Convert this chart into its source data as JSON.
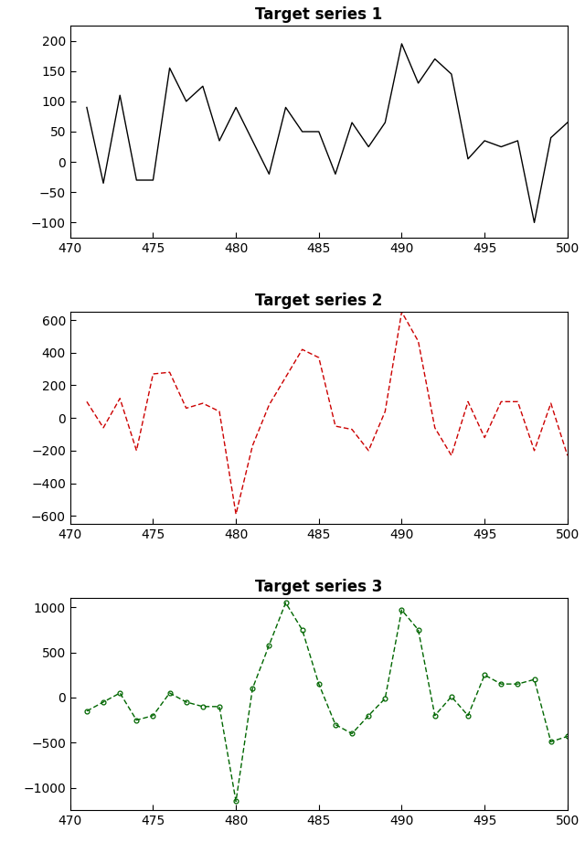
{
  "x": [
    471,
    472,
    473,
    474,
    475,
    476,
    477,
    478,
    479,
    480,
    481,
    482,
    483,
    484,
    485,
    486,
    487,
    488,
    489,
    490,
    491,
    492,
    493,
    494,
    495,
    496,
    497,
    498,
    499,
    500
  ],
  "series1": [
    90,
    -35,
    110,
    -30,
    -30,
    155,
    100,
    125,
    35,
    90,
    35,
    -20,
    90,
    50,
    50,
    -20,
    65,
    25,
    65,
    195,
    130,
    170,
    145,
    5,
    35,
    25,
    35,
    -100,
    40,
    65
  ],
  "series2": [
    100,
    -60,
    120,
    -200,
    270,
    280,
    60,
    90,
    40,
    -590,
    -170,
    80,
    250,
    420,
    370,
    -50,
    -70,
    -200,
    40,
    650,
    470,
    -60,
    -230,
    100,
    -120,
    100,
    100,
    -200,
    90,
    -230
  ],
  "series3": [
    -150,
    -50,
    50,
    -250,
    -200,
    50,
    -50,
    -100,
    -100,
    -1150,
    100,
    580,
    1050,
    750,
    150,
    -300,
    -400,
    -200,
    -10,
    970,
    750,
    -200,
    10,
    -200,
    250,
    150,
    150,
    200,
    -490,
    -430
  ],
  "title1": "Target series 1",
  "title2": "Target series 2",
  "title3": "Target series 3",
  "color1": "#000000",
  "color2": "#cc0000",
  "color3": "#006600",
  "xlim": [
    470,
    500
  ],
  "ylim1": [
    -125,
    225
  ],
  "ylim2": [
    -650,
    650
  ],
  "ylim3": [
    -1250,
    1100
  ],
  "yticks1": [
    -100,
    -50,
    0,
    50,
    100,
    150,
    200
  ],
  "yticks2": [
    -600,
    -400,
    -200,
    0,
    200,
    400,
    600
  ],
  "yticks3": [
    -1000,
    -500,
    0,
    500,
    1000
  ],
  "xticks": [
    470,
    475,
    480,
    485,
    490,
    495,
    500
  ],
  "title_fontsize": 12,
  "tick_fontsize": 10,
  "bg_color": "#ffffff"
}
